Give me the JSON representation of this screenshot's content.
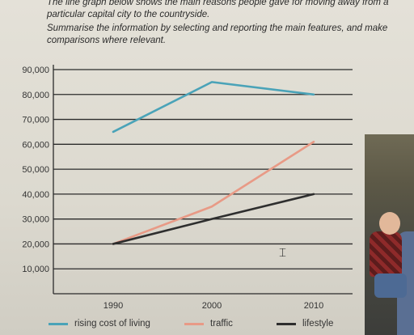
{
  "prompt": {
    "line1": "The line graph below shows the main reasons people gave for moving away from a",
    "line2": "particular capital city to the countryside.",
    "line3": "Summarise the information by selecting and reporting the main features, and make",
    "line4": "comparisons where relevant."
  },
  "chart_data": {
    "type": "line",
    "title": "",
    "xlabel": "",
    "ylabel": "",
    "x": [
      "1990",
      "2000",
      "2010"
    ],
    "y_ticks": [
      "90,000",
      "80,000",
      "70,000",
      "60,000",
      "50,000",
      "40,000",
      "30,000",
      "20,000",
      "10,000"
    ],
    "ylim": [
      0,
      90000
    ],
    "grid": true,
    "legend_position": "bottom",
    "series": [
      {
        "name": "rising cost of living",
        "values": [
          65000,
          85000,
          80000
        ],
        "color": "#4aa3b8"
      },
      {
        "name": "traffic",
        "values": [
          20000,
          35000,
          61000
        ],
        "color": "#e89a86"
      },
      {
        "name": "lifestyle",
        "values": [
          20000,
          30000,
          40000
        ],
        "color": "#2e2e2e"
      }
    ]
  },
  "icons": {
    "cursor": "text-cursor-icon",
    "photo": "child-photo"
  }
}
